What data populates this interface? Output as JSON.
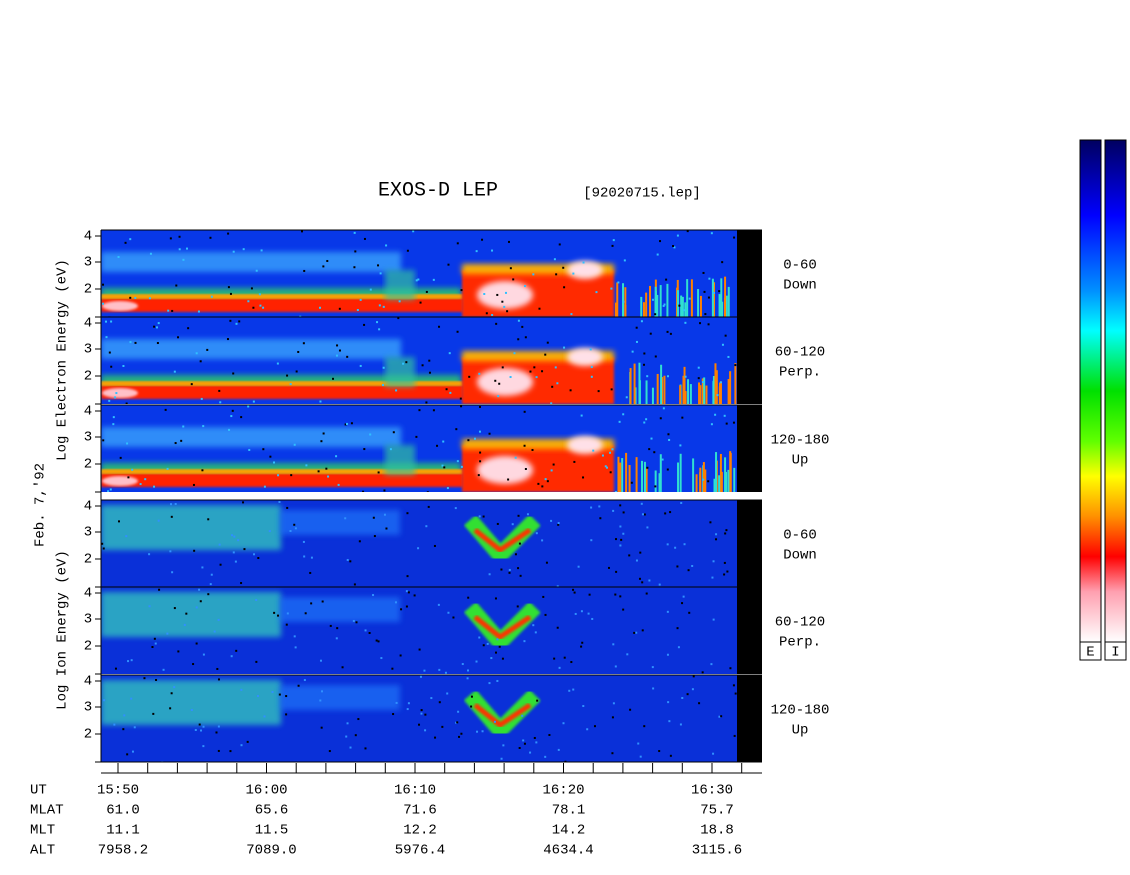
{
  "header": {
    "title": "EXOS-D LEP",
    "file": "[92020715.lep]"
  },
  "side_labels": {
    "electron": "Log Electron Energy (eV)",
    "date": "Feb. 7,'92",
    "ion": "Log Ion Energy (eV)"
  },
  "energy_ticks": [
    "4",
    "3",
    "2"
  ],
  "panels": [
    {
      "angle": "0-60",
      "direction": "Down"
    },
    {
      "angle": "60-120",
      "direction": "Perp."
    },
    {
      "angle": "120-180",
      "direction": "Up"
    },
    {
      "angle": "0-60",
      "direction": "Down"
    },
    {
      "angle": "60-120",
      "direction": "Perp."
    },
    {
      "angle": "120-180",
      "direction": "Up"
    }
  ],
  "time_table": {
    "row_labels": [
      "UT",
      "MLAT",
      "MLT",
      "ALT"
    ],
    "columns": [
      [
        "15:50",
        "61.0",
        "11.1",
        "7958.2"
      ],
      [
        "16:00",
        "65.6",
        "11.5",
        "7089.0"
      ],
      [
        "16:10",
        "71.6",
        "12.2",
        "5976.4"
      ],
      [
        "16:20",
        "78.1",
        "14.2",
        "4634.4"
      ],
      [
        "16:30",
        "75.7",
        "18.8",
        "3115.6"
      ]
    ]
  },
  "colorbar_labels": [
    "E",
    "I"
  ]
}
